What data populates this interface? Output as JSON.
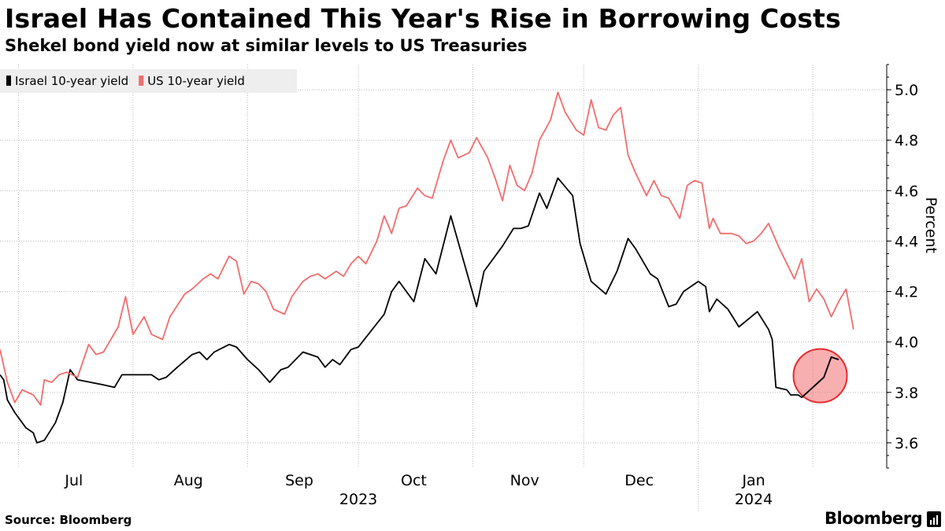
{
  "chart_data": {
    "type": "line",
    "title": "Israel Has Contained This Year's Rise in Borrowing Costs",
    "subtitle": "Shekel bond yield now at similar levels to US Treasuries",
    "ylabel": "Percent",
    "ylim": [
      3.5,
      5.1
    ],
    "y_ticks": [
      3.6,
      3.8,
      4.0,
      4.2,
      4.4,
      4.6,
      4.8,
      5.0
    ],
    "y_tick_labels": [
      "3.6",
      "3.8",
      "4.0",
      "4.2",
      "4.4",
      "4.6",
      "4.8",
      "5.0"
    ],
    "x_range": [
      "2023-06-26",
      "2024-02-21"
    ],
    "x_month_labels": [
      {
        "label": "Jul",
        "date": "2023-07-16"
      },
      {
        "label": "Aug",
        "date": "2023-08-16"
      },
      {
        "label": "Sep",
        "date": "2023-09-15"
      },
      {
        "label": "Oct",
        "date": "2023-10-16"
      },
      {
        "label": "Nov",
        "date": "2023-11-15"
      },
      {
        "label": "Dec",
        "date": "2023-12-16"
      },
      {
        "label": "Jan",
        "date": "2024-01-16"
      }
    ],
    "x_year_labels": [
      {
        "label": "2023",
        "date": "2023-10-01"
      },
      {
        "label": "2024",
        "date": "2024-01-16"
      }
    ],
    "x_gridlines": [
      "2023-07-01",
      "2023-08-01",
      "2023-09-01",
      "2023-10-01",
      "2023-11-01",
      "2023-12-01",
      "2024-01-01",
      "2024-02-01"
    ],
    "year_divider": "2024-01-01",
    "grid": true,
    "legend_position": "top-left",
    "series": [
      {
        "name": "Israel 10-year yield",
        "color": "#000000",
        "points": [
          [
            "2023-06-26",
            3.87
          ],
          [
            "2023-06-27",
            3.85
          ],
          [
            "2023-06-28",
            3.77
          ],
          [
            "2023-06-30",
            3.72
          ],
          [
            "2023-07-03",
            3.66
          ],
          [
            "2023-07-05",
            3.64
          ],
          [
            "2023-07-06",
            3.6
          ],
          [
            "2023-07-08",
            3.61
          ],
          [
            "2023-07-11",
            3.68
          ],
          [
            "2023-07-13",
            3.76
          ],
          [
            "2023-07-15",
            3.89
          ],
          [
            "2023-07-17",
            3.85
          ],
          [
            "2023-07-24",
            3.83
          ],
          [
            "2023-07-27",
            3.82
          ],
          [
            "2023-07-29",
            3.87
          ],
          [
            "2023-08-06",
            3.87
          ],
          [
            "2023-08-08",
            3.85
          ],
          [
            "2023-08-10",
            3.86
          ],
          [
            "2023-08-13",
            3.9
          ],
          [
            "2023-08-17",
            3.95
          ],
          [
            "2023-08-19",
            3.96
          ],
          [
            "2023-08-21",
            3.93
          ],
          [
            "2023-08-23",
            3.96
          ],
          [
            "2023-08-27",
            3.99
          ],
          [
            "2023-08-29",
            3.98
          ],
          [
            "2023-09-01",
            3.93
          ],
          [
            "2023-09-04",
            3.89
          ],
          [
            "2023-09-07",
            3.84
          ],
          [
            "2023-09-10",
            3.89
          ],
          [
            "2023-09-12",
            3.9
          ],
          [
            "2023-09-14",
            3.93
          ],
          [
            "2023-09-16",
            3.96
          ],
          [
            "2023-09-20",
            3.94
          ],
          [
            "2023-09-22",
            3.9
          ],
          [
            "2023-09-24",
            3.93
          ],
          [
            "2023-09-26",
            3.91
          ],
          [
            "2023-09-29",
            3.97
          ],
          [
            "2023-10-01",
            3.98
          ],
          [
            "2023-10-08",
            4.11
          ],
          [
            "2023-10-10",
            4.2
          ],
          [
            "2023-10-12",
            4.24
          ],
          [
            "2023-10-14",
            4.2
          ],
          [
            "2023-10-16",
            4.16
          ],
          [
            "2023-10-19",
            4.33
          ],
          [
            "2023-10-22",
            4.27
          ],
          [
            "2023-10-26",
            4.5
          ],
          [
            "2023-11-02",
            4.14
          ],
          [
            "2023-11-04",
            4.28
          ],
          [
            "2023-11-09",
            4.38
          ],
          [
            "2023-11-12",
            4.45
          ],
          [
            "2023-11-14",
            4.45
          ],
          [
            "2023-11-16",
            4.46
          ],
          [
            "2023-11-19",
            4.59
          ],
          [
            "2023-11-21",
            4.53
          ],
          [
            "2023-11-24",
            4.65
          ],
          [
            "2023-11-28",
            4.58
          ],
          [
            "2023-11-30",
            4.39
          ],
          [
            "2023-12-03",
            4.24
          ],
          [
            "2023-12-07",
            4.19
          ],
          [
            "2023-12-10",
            4.28
          ],
          [
            "2023-12-13",
            4.41
          ],
          [
            "2023-12-15",
            4.37
          ],
          [
            "2023-12-19",
            4.27
          ],
          [
            "2023-12-21",
            4.25
          ],
          [
            "2023-12-24",
            4.14
          ],
          [
            "2023-12-26",
            4.15
          ],
          [
            "2023-12-28",
            4.2
          ],
          [
            "2024-01-01",
            4.24
          ],
          [
            "2024-01-03",
            4.22
          ],
          [
            "2024-01-04",
            4.12
          ],
          [
            "2024-01-06",
            4.17
          ],
          [
            "2024-01-09",
            4.13
          ],
          [
            "2024-01-12",
            4.06
          ],
          [
            "2024-01-17",
            4.12
          ],
          [
            "2024-01-20",
            4.05
          ],
          [
            "2024-01-21",
            4.01
          ],
          [
            "2024-01-22",
            3.82
          ],
          [
            "2024-01-25",
            3.81
          ],
          [
            "2024-01-26",
            3.79
          ],
          [
            "2024-01-28",
            3.79
          ],
          [
            "2024-01-29",
            3.78
          ],
          [
            "2024-02-01",
            3.82
          ],
          [
            "2024-02-04",
            3.86
          ],
          [
            "2024-02-06",
            3.94
          ],
          [
            "2024-02-08",
            3.93
          ]
        ]
      },
      {
        "name": "US 10-year yield",
        "color": "#f26d6d",
        "points": [
          [
            "2023-06-26",
            3.97
          ],
          [
            "2023-06-28",
            3.84
          ],
          [
            "2023-06-30",
            3.76
          ],
          [
            "2023-07-02",
            3.81
          ],
          [
            "2023-07-05",
            3.79
          ],
          [
            "2023-07-07",
            3.75
          ],
          [
            "2023-07-08",
            3.85
          ],
          [
            "2023-07-10",
            3.84
          ],
          [
            "2023-07-12",
            3.87
          ],
          [
            "2023-07-14",
            3.88
          ],
          [
            "2023-07-17",
            3.86
          ],
          [
            "2023-07-20",
            3.99
          ],
          [
            "2023-07-22",
            3.95
          ],
          [
            "2023-07-24",
            3.96
          ],
          [
            "2023-07-28",
            4.06
          ],
          [
            "2023-07-30",
            4.18
          ],
          [
            "2023-08-01",
            4.03
          ],
          [
            "2023-08-04",
            4.1
          ],
          [
            "2023-08-06",
            4.03
          ],
          [
            "2023-08-09",
            4.01
          ],
          [
            "2023-08-11",
            4.1
          ],
          [
            "2023-08-15",
            4.19
          ],
          [
            "2023-08-17",
            4.21
          ],
          [
            "2023-08-20",
            4.25
          ],
          [
            "2023-08-22",
            4.27
          ],
          [
            "2023-08-24",
            4.25
          ],
          [
            "2023-08-27",
            4.34
          ],
          [
            "2023-08-29",
            4.32
          ],
          [
            "2023-08-31",
            4.19
          ],
          [
            "2023-09-02",
            4.24
          ],
          [
            "2023-09-04",
            4.23
          ],
          [
            "2023-09-06",
            4.2
          ],
          [
            "2023-09-08",
            4.13
          ],
          [
            "2023-09-11",
            4.11
          ],
          [
            "2023-09-13",
            4.18
          ],
          [
            "2023-09-16",
            4.24
          ],
          [
            "2023-09-18",
            4.26
          ],
          [
            "2023-09-20",
            4.27
          ],
          [
            "2023-09-22",
            4.25
          ],
          [
            "2023-09-25",
            4.28
          ],
          [
            "2023-09-27",
            4.26
          ],
          [
            "2023-09-29",
            4.31
          ],
          [
            "2023-10-01",
            4.34
          ],
          [
            "2023-10-03",
            4.31
          ],
          [
            "2023-10-06",
            4.4
          ],
          [
            "2023-10-08",
            4.5
          ],
          [
            "2023-10-10",
            4.43
          ],
          [
            "2023-10-12",
            4.53
          ],
          [
            "2023-10-14",
            4.54
          ],
          [
            "2023-10-17",
            4.61
          ],
          [
            "2023-10-19",
            4.58
          ],
          [
            "2023-10-21",
            4.57
          ],
          [
            "2023-10-24",
            4.72
          ],
          [
            "2023-10-26",
            4.8
          ],
          [
            "2023-10-28",
            4.73
          ],
          [
            "2023-10-31",
            4.75
          ],
          [
            "2023-11-02",
            4.81
          ],
          [
            "2023-11-05",
            4.73
          ],
          [
            "2023-11-07",
            4.65
          ],
          [
            "2023-11-09",
            4.56
          ],
          [
            "2023-11-11",
            4.7
          ],
          [
            "2023-11-13",
            4.62
          ],
          [
            "2023-11-15",
            4.6
          ],
          [
            "2023-11-17",
            4.67
          ],
          [
            "2023-11-19",
            4.8
          ],
          [
            "2023-11-22",
            4.88
          ],
          [
            "2023-11-24",
            4.99
          ],
          [
            "2023-11-26",
            4.91
          ],
          [
            "2023-11-29",
            4.84
          ],
          [
            "2023-12-01",
            4.82
          ],
          [
            "2023-12-03",
            4.96
          ],
          [
            "2023-12-05",
            4.85
          ],
          [
            "2023-12-07",
            4.84
          ],
          [
            "2023-12-09",
            4.9
          ],
          [
            "2023-12-11",
            4.93
          ],
          [
            "2023-12-13",
            4.74
          ],
          [
            "2023-12-15",
            4.67
          ],
          [
            "2023-12-18",
            4.58
          ],
          [
            "2023-12-20",
            4.64
          ],
          [
            "2023-12-22",
            4.58
          ],
          [
            "2023-12-24",
            4.57
          ],
          [
            "2023-12-27",
            4.49
          ],
          [
            "2023-12-29",
            4.62
          ],
          [
            "2023-12-31",
            4.64
          ],
          [
            "2024-01-02",
            4.63
          ],
          [
            "2024-01-04",
            4.45
          ],
          [
            "2024-01-05",
            4.49
          ],
          [
            "2024-01-07",
            4.43
          ],
          [
            "2024-01-10",
            4.43
          ],
          [
            "2024-01-12",
            4.42
          ],
          [
            "2024-01-14",
            4.39
          ],
          [
            "2024-01-16",
            4.4
          ],
          [
            "2024-01-18",
            4.43
          ],
          [
            "2024-01-20",
            4.47
          ],
          [
            "2024-01-23",
            4.37
          ],
          [
            "2024-01-25",
            4.31
          ],
          [
            "2024-01-27",
            4.25
          ],
          [
            "2024-01-29",
            4.33
          ],
          [
            "2024-01-31",
            4.16
          ],
          [
            "2024-02-02",
            4.21
          ],
          [
            "2024-02-04",
            4.17
          ],
          [
            "2024-02-06",
            4.1
          ],
          [
            "2024-02-08",
            4.16
          ],
          [
            "2024-02-10",
            4.21
          ],
          [
            "2024-02-12",
            4.05
          ]
        ]
      }
    ]
  },
  "footer": {
    "source": "Source: Bloomberg",
    "brand": "Bloomberg"
  }
}
